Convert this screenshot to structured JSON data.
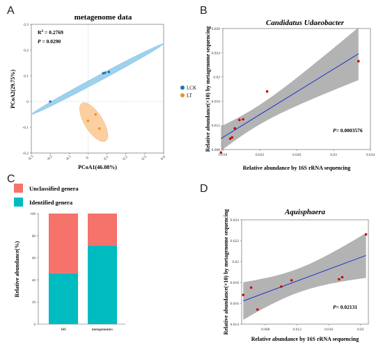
{
  "panels": {
    "a": "A",
    "b": "B",
    "c": "C",
    "d": "D"
  },
  "colors": {
    "lck": "#1f77b4",
    "lt": "#f28e2b",
    "ellipse_lck": "#9fd1ec",
    "ellipse_lt": "#fbcf9f",
    "point_red": "#cc0000",
    "fit_line": "#2233cc",
    "ci_band": "#a6a6a6",
    "unclassified": "#f6736c",
    "identified": "#00bcc1"
  },
  "chart_data": [
    {
      "id": "A",
      "type": "scatter",
      "title": "metagenome data",
      "xlabel": "PCoA1(46.08%)",
      "ylabel": "PCoA2(29.75%)",
      "xlim": [
        -0.3,
        0.4
      ],
      "ylim": [
        -0.2,
        0.3
      ],
      "xticks": [
        "-0.3",
        "-0.2",
        "-0.1",
        "0",
        "0.1",
        "0.2",
        "0.3",
        "0.4"
      ],
      "yticks": [
        "0.3",
        "0.2",
        "0.1",
        "0",
        "-0.1",
        "-0.2"
      ],
      "annotations": {
        "r2_prefix": "R",
        "r2_sup": "2",
        "r2_value": " = 0.2769",
        "p_label": "P",
        "p_value": " = 0.0290"
      },
      "legend": [
        {
          "name": "LCK",
          "color": "#1f77b4"
        },
        {
          "name": "LT",
          "color": "#f28e2b"
        }
      ],
      "series": [
        {
          "name": "LCK",
          "points": [
            [
              -0.2,
              0.0
            ],
            [
              0.08,
              0.11
            ],
            [
              0.09,
              0.112
            ],
            [
              0.11,
              0.115
            ]
          ]
        },
        {
          "name": "LT",
          "points": [
            [
              0.0,
              -0.075
            ],
            [
              0.04,
              -0.05
            ],
            [
              0.06,
              -0.105
            ]
          ]
        }
      ]
    },
    {
      "id": "B",
      "type": "scatter",
      "title": "Candidatus Udaeobacter",
      "xlabel": "Relative abundance by 16S rRNA sequencing",
      "ylabel": "Relative abundance(×10) by metagenome sequencing",
      "xlim": [
        0.018,
        0.034
      ],
      "ylim": [
        0.008,
        0.028
      ],
      "xticks": [
        "0.018",
        "0.022",
        "0.026",
        "0.03",
        "0.034"
      ],
      "yticks": [
        "0.028",
        "0.024",
        "0.02",
        "0.016",
        "0.012",
        "0.008"
      ],
      "p_label": "P",
      "p_value": "= 0.0003576",
      "points": [
        [
          0.0178,
          0.0075
        ],
        [
          0.0188,
          0.0098
        ],
        [
          0.019,
          0.01
        ],
        [
          0.0193,
          0.0115
        ],
        [
          0.0198,
          0.0129
        ],
        [
          0.0202,
          0.013
        ],
        [
          0.0228,
          0.0176
        ],
        [
          0.0327,
          0.0226
        ]
      ]
    },
    {
      "id": "C",
      "type": "bar",
      "ylabel": "Relative abundance(%)",
      "categories": [
        "16S",
        "metagenomics"
      ],
      "ylim": [
        0,
        100
      ],
      "yticks": [
        "0",
        "20",
        "40",
        "60",
        "80",
        "100"
      ],
      "legend": [
        {
          "name": "Unclassified genera",
          "color": "#f6736c"
        },
        {
          "name": "Identified genera",
          "color": "#00bcc1"
        }
      ],
      "series": [
        {
          "name": "Identified genera",
          "values": [
            46,
            71
          ]
        },
        {
          "name": "Unclassified genera",
          "values": [
            54,
            29
          ]
        }
      ]
    },
    {
      "id": "D",
      "type": "scatter",
      "title": "Aquisphaera",
      "xlabel": "Relative abundance by 16S rRNA sequencing",
      "ylabel": "Relative abundance(×10) by metagenome sequencing",
      "xlim": [
        0.005,
        0.021
      ],
      "ylim": [
        0.014,
        0.024
      ],
      "xticks": [
        "0.008",
        "0.012",
        "0.016",
        "0.02"
      ],
      "yticks": [
        "0.024",
        "0.022",
        "0.02",
        "0.018",
        "0.016",
        "0.014"
      ],
      "p_label": "P",
      "p_value": "= 0.02131",
      "points": [
        [
          0.0052,
          0.0168
        ],
        [
          0.0062,
          0.0175
        ],
        [
          0.007,
          0.0154
        ],
        [
          0.01,
          0.0176
        ],
        [
          0.0113,
          0.0182
        ],
        [
          0.0173,
          0.0183
        ],
        [
          0.0177,
          0.0185
        ],
        [
          0.0207,
          0.0226
        ]
      ]
    }
  ]
}
